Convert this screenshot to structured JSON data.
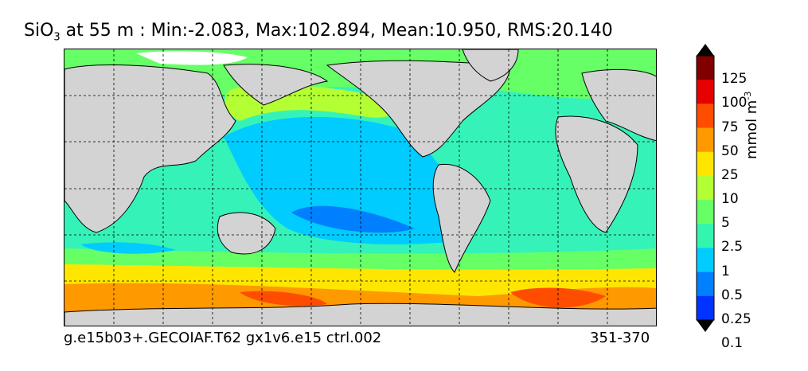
{
  "title": {
    "variable": "SiO",
    "subscript": "3",
    "rest": " at 55 m : Min:-2.083, Max:102.894, Mean:10.950, RMS:20.140"
  },
  "footer": {
    "case_name": "g.e15b03+.GECOIAF.T62 gx1v6.e15 ctrl.002",
    "years": "351-370"
  },
  "colorbar": {
    "unit_base": "mmol m",
    "unit_exp": "-3",
    "levels": [
      "125",
      "100",
      "75",
      "50",
      "25",
      "10",
      "5",
      "2.5",
      "1",
      "0.5",
      "0.25",
      "0.1"
    ],
    "colors_top_to_bottom": [
      "#800000",
      "#e60000",
      "#ff4d00",
      "#ff9900",
      "#ffe600",
      "#b3ff33",
      "#66ff66",
      "#33f5b0",
      "#00ccff",
      "#0080ff",
      "#0033ff",
      "#0000cc",
      "#000080"
    ]
  },
  "map": {
    "land_color": "#d3d3d3",
    "missing_color": "#ffffff"
  }
}
